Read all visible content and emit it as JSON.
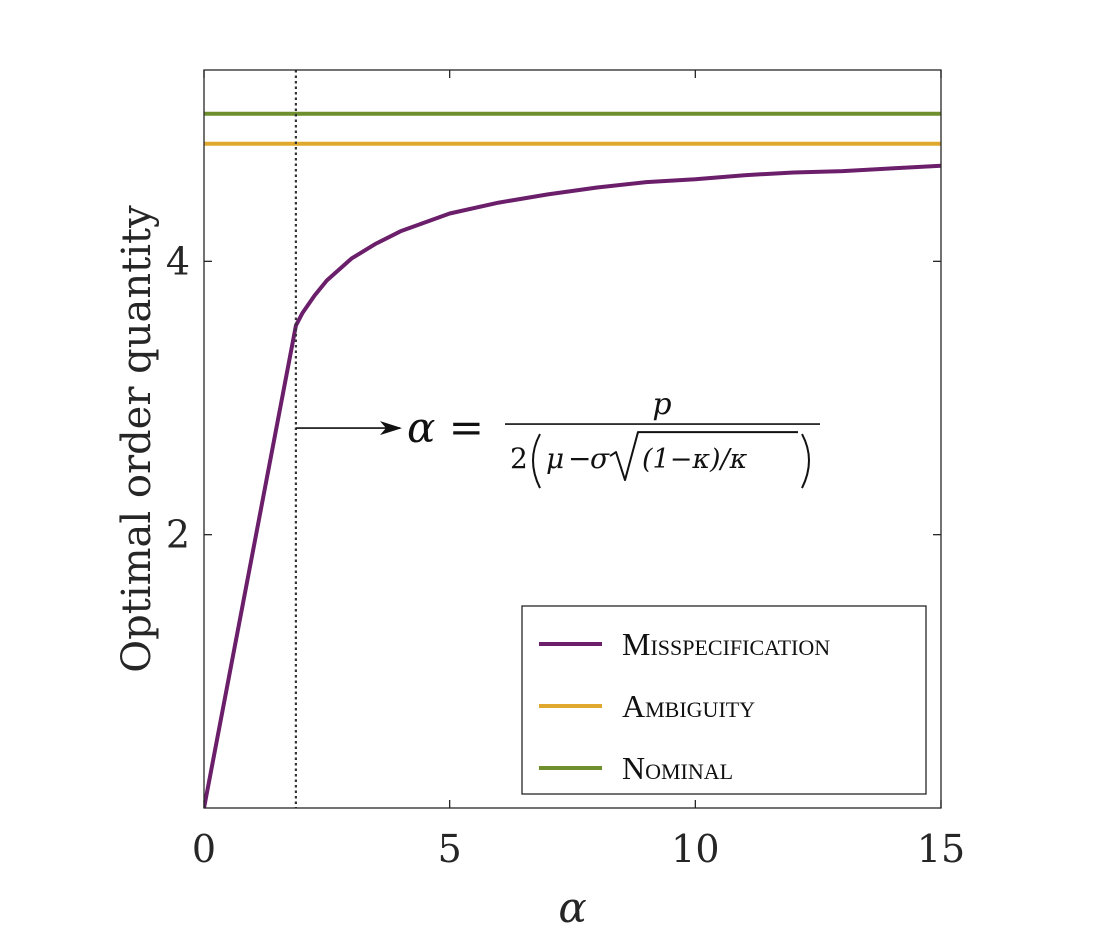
{
  "chart_data": {
    "type": "line",
    "title": "",
    "xlabel": "α",
    "ylabel": "Optimal order quantity",
    "xlim": [
      0,
      15
    ],
    "ylim": [
      0,
      5.4
    ],
    "xticks": [
      0,
      5,
      10,
      15
    ],
    "xtick_labels": [
      "0",
      "5",
      "10",
      "15"
    ],
    "yticks": [
      2,
      4
    ],
    "ytick_labels": [
      "2",
      "4"
    ],
    "grid": false,
    "legend_position": "bottom-right",
    "series": [
      {
        "name": "Misspecification",
        "color": "#6b1f6b",
        "x": [
          0,
          1.87,
          2.0,
          2.25,
          2.5,
          3.0,
          3.5,
          4.0,
          5.0,
          6.0,
          7.0,
          8.0,
          9.0,
          10.0,
          11.0,
          12.0,
          13.0,
          14.0,
          15.0
        ],
        "values": [
          0,
          3.53,
          3.62,
          3.75,
          3.86,
          4.02,
          4.13,
          4.22,
          4.35,
          4.43,
          4.49,
          4.54,
          4.58,
          4.6,
          4.63,
          4.65,
          4.66,
          4.68,
          4.7
        ]
      },
      {
        "name": "Ambiguity",
        "color": "#e0a82e",
        "x": [
          0,
          15
        ],
        "values": [
          4.86,
          4.86
        ]
      },
      {
        "name": "Nominal",
        "color": "#6f8f2f",
        "x": [
          0,
          15
        ],
        "values": [
          5.08,
          5.08
        ]
      }
    ],
    "threshold": {
      "x": 1.87,
      "style": "dotted",
      "color": "#333333"
    },
    "annotation": {
      "lhs": "α =",
      "numerator": "p",
      "denominator_prefix": "2",
      "mu": "μ",
      "minus": "−",
      "sigma": "σ",
      "sqrt_content": "(1−κ)/κ",
      "arrow_y": 2.78
    }
  }
}
